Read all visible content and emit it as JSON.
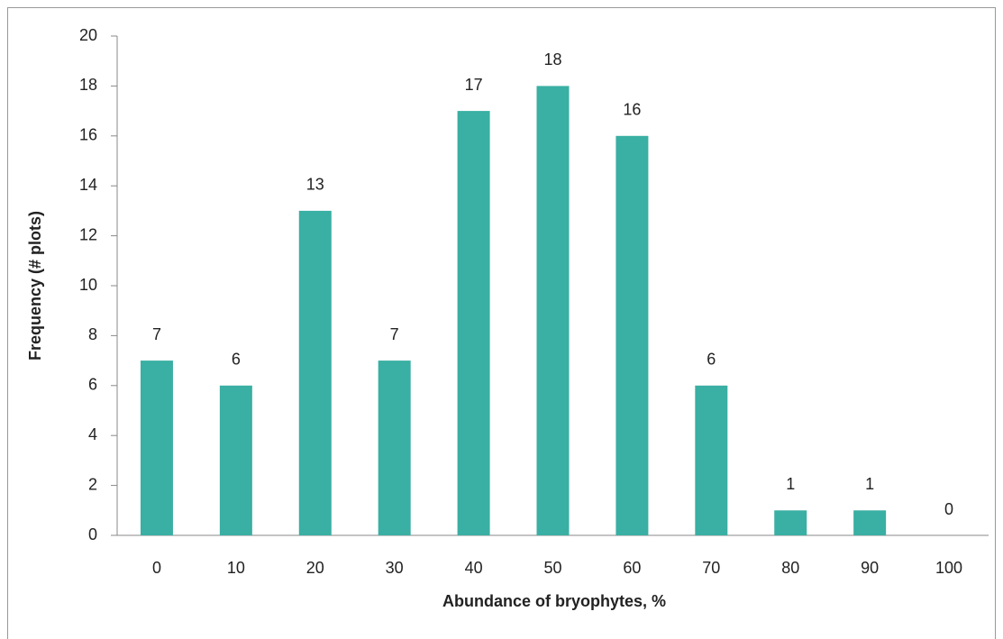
{
  "chart_data": {
    "type": "bar",
    "x_label": "Abundance of bryophytes, %",
    "y_label": "Frequency (# plots)",
    "categories": [
      "0",
      "10",
      "20",
      "30",
      "40",
      "50",
      "60",
      "70",
      "80",
      "90",
      "100"
    ],
    "values": [
      7,
      6,
      13,
      7,
      17,
      18,
      16,
      6,
      1,
      1,
      0
    ],
    "color": "#3aafa3",
    "ylim": [
      0,
      20
    ],
    "yticks": [
      0,
      2,
      4,
      6,
      8,
      10,
      12,
      14,
      16,
      18,
      20
    ],
    "grid": false,
    "data_labels": true
  }
}
